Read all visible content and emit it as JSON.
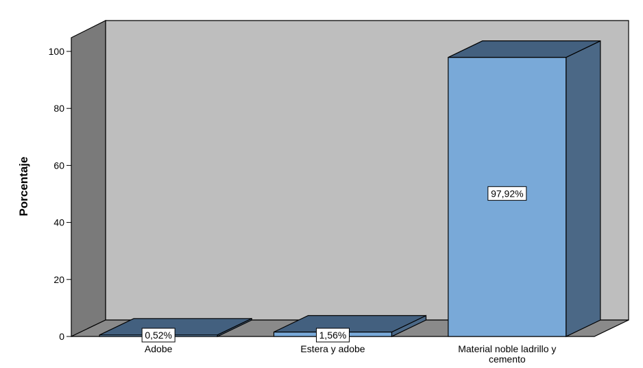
{
  "chart_data": {
    "type": "bar",
    "style": "3d",
    "categories": [
      "Adobe",
      "Estera y adobe",
      "Material noble ladrillo y cemento"
    ],
    "category_label_lines": [
      [
        "Adobe"
      ],
      [
        "Estera y adobe"
      ],
      [
        "Material noble ladrillo y",
        "cemento"
      ]
    ],
    "values": [
      0.52,
      1.56,
      97.92
    ],
    "data_labels": [
      "0,52%",
      "1,56%",
      "97,92%"
    ],
    "ylabel": "Porcentaje",
    "xlabel": "",
    "ylim": [
      0,
      100
    ],
    "yticks": [
      0,
      20,
      40,
      60,
      80,
      100
    ],
    "grid": false,
    "legend": "none",
    "colors": {
      "bar_front": "#79a9d8",
      "bar_top": "#43607f",
      "bar_side": "#4b6886",
      "back_wall": "#bebebe",
      "side_wall": "#7a7a7a",
      "floor": "#8a8a8a",
      "outline": "#000000"
    }
  }
}
